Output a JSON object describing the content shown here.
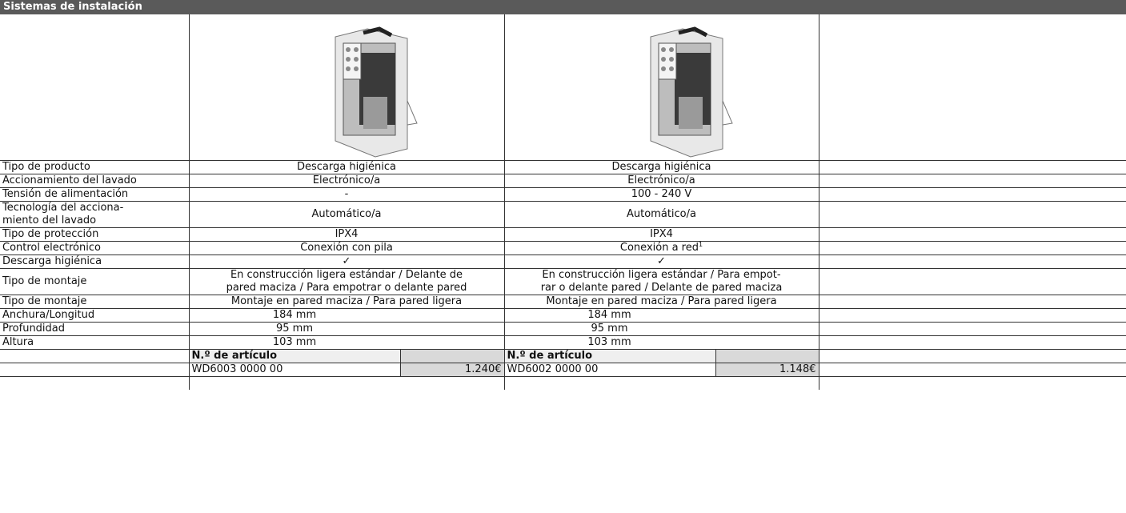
{
  "header": {
    "title": "Sistemas de instalación"
  },
  "table": {
    "rows": [
      {
        "label": "Tipo de producto",
        "values": [
          "Descarga higiénica",
          "Descarga higiénica"
        ]
      },
      {
        "label": "Accionamiento del lavado",
        "values": [
          "Electrónico/a",
          "Electrónico/a"
        ]
      },
      {
        "label": "Tensión de alimentación",
        "values": [
          "-",
          "100 - 240 V"
        ]
      },
      {
        "label": [
          "Tecnología del acciona-",
          "miento del lavado"
        ],
        "values": [
          "Automático/a",
          "Automático/a"
        ]
      },
      {
        "label": "Tipo de protección",
        "values": [
          "IPX4",
          "IPX4"
        ]
      },
      {
        "label": "Control electrónico",
        "values": [
          "Conexión con pila",
          {
            "text": "Conexión a red",
            "sup": "1"
          }
        ]
      },
      {
        "label": "Descarga higiénica",
        "values": [
          "✓",
          "✓"
        ]
      },
      {
        "label": "Tipo de montaje",
        "values": [
          [
            "En construcción ligera estándar / Delante de",
            "pared maciza / Para empotrar o delante pared"
          ],
          [
            "En construcción ligera estándar / Para empot-",
            "rar o delante pared / Delante de pared maciza"
          ]
        ]
      },
      {
        "label": "Tipo de montaje",
        "values": [
          "Montaje en pared maciza / Para pared ligera",
          "Montaje en pared maciza / Para pared ligera"
        ]
      },
      {
        "label": "Anchura/Longitud",
        "values": [
          "184 mm",
          "184 mm"
        ]
      },
      {
        "label": "Profundidad",
        "values": [
          "95 mm",
          "95 mm"
        ]
      },
      {
        "label": "Altura",
        "values": [
          "103 mm",
          "103 mm"
        ]
      }
    ],
    "article_header": "N.º de artículo",
    "articles": [
      {
        "number": "WD6003 0000 00",
        "price": "1.240€"
      },
      {
        "number": "WD6002 0000 00",
        "price": "1.148€"
      }
    ]
  }
}
